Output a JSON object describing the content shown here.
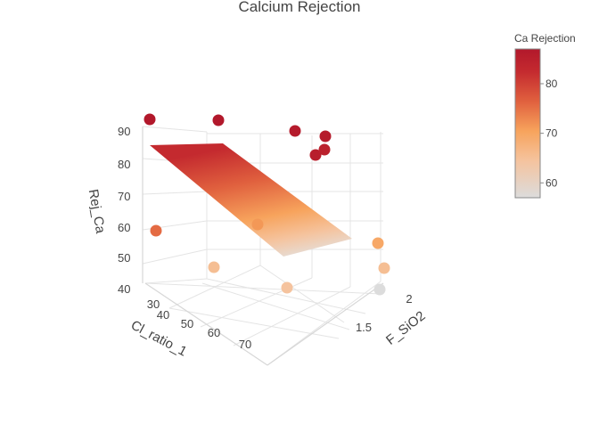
{
  "chart_data": {
    "type": "scatter3d",
    "title": "Calcium Rejection",
    "axes": {
      "x": {
        "label": "F_SiO2",
        "ticks": [
          "1.5",
          "2"
        ]
      },
      "y": {
        "label": "Cl_ratio_1",
        "ticks": [
          "30",
          "40",
          "50",
          "60",
          "70"
        ]
      },
      "z": {
        "label": "Rej_Ca",
        "ticks": [
          "40",
          "50",
          "60",
          "70",
          "80",
          "90"
        ]
      }
    },
    "colorbar": {
      "title": "Ca Rejection",
      "ticks": [
        "80",
        "70",
        "60"
      ],
      "range": [
        57,
        87
      ],
      "colorscale": [
        "#dcdcdc",
        "#f5c39e",
        "#f7a35c",
        "#e0603e",
        "#c42a2f",
        "#b2182b"
      ]
    },
    "points": [
      {
        "rej_ca": 87
      },
      {
        "rej_ca": 87
      },
      {
        "rej_ca": 86
      },
      {
        "rej_ca": 86
      },
      {
        "rej_ca": 85
      },
      {
        "rej_ca": 84
      },
      {
        "rej_ca": 74
      },
      {
        "rej_ca": 70
      },
      {
        "rej_ca": 68
      },
      {
        "rej_ca": 64
      },
      {
        "rej_ca": 64
      },
      {
        "rej_ca": 63
      },
      {
        "rej_ca": 57
      }
    ],
    "surface": {
      "type": "fitted plane",
      "min": 57,
      "max": 87
    }
  }
}
